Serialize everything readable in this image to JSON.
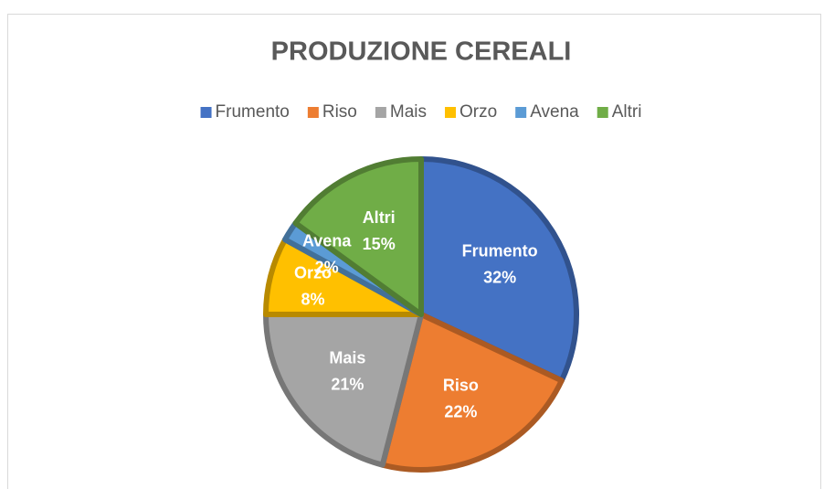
{
  "chart_data": {
    "type": "pie",
    "title": "PRODUZIONE CEREALI",
    "categories": [
      "Frumento",
      "Riso",
      "Mais",
      "Orzo",
      "Avena",
      "Altri"
    ],
    "values": [
      32,
      22,
      21,
      8,
      2,
      15
    ],
    "value_labels": [
      "32%",
      "22%",
      "21%",
      "8%",
      "2%",
      "15%"
    ],
    "colors": [
      "#4472c4",
      "#ed7d31",
      "#a5a5a5",
      "#ffc000",
      "#5b9bd5",
      "#70ad47"
    ],
    "legend": "top"
  }
}
